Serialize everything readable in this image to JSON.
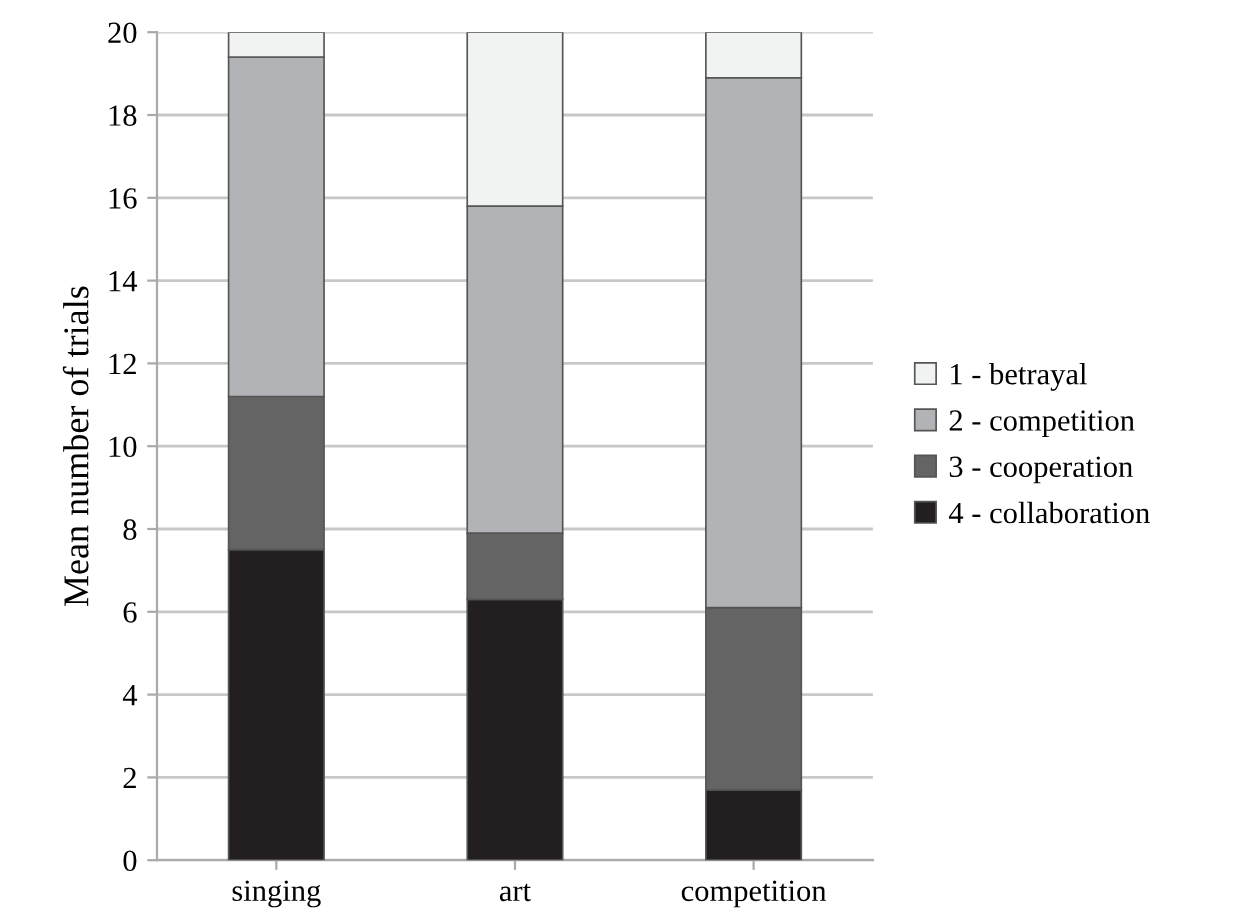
{
  "chart_data": {
    "type": "bar",
    "stacked": true,
    "ylabel": "Mean number of trials",
    "categories": [
      "singing",
      "art",
      "competition"
    ],
    "series": [
      {
        "name": "4 - collaboration",
        "color": "#231f20",
        "values": [
          7.5,
          6.3,
          1.7
        ]
      },
      {
        "name": "3 - cooperation",
        "color": "#646464",
        "values": [
          3.7,
          1.6,
          4.4
        ]
      },
      {
        "name": "2 - competition",
        "color": "#b2b3b6",
        "values": [
          8.2,
          7.9,
          12.8
        ]
      },
      {
        "name": "1 - betrayal",
        "color": "#f1f3f2",
        "values": [
          0.6,
          4.2,
          1.1
        ]
      }
    ],
    "ylim": [
      0,
      20
    ],
    "yticks": [
      0,
      2,
      4,
      6,
      8,
      10,
      12,
      14,
      16,
      18,
      20
    ],
    "grid": "y",
    "legend": "right"
  }
}
